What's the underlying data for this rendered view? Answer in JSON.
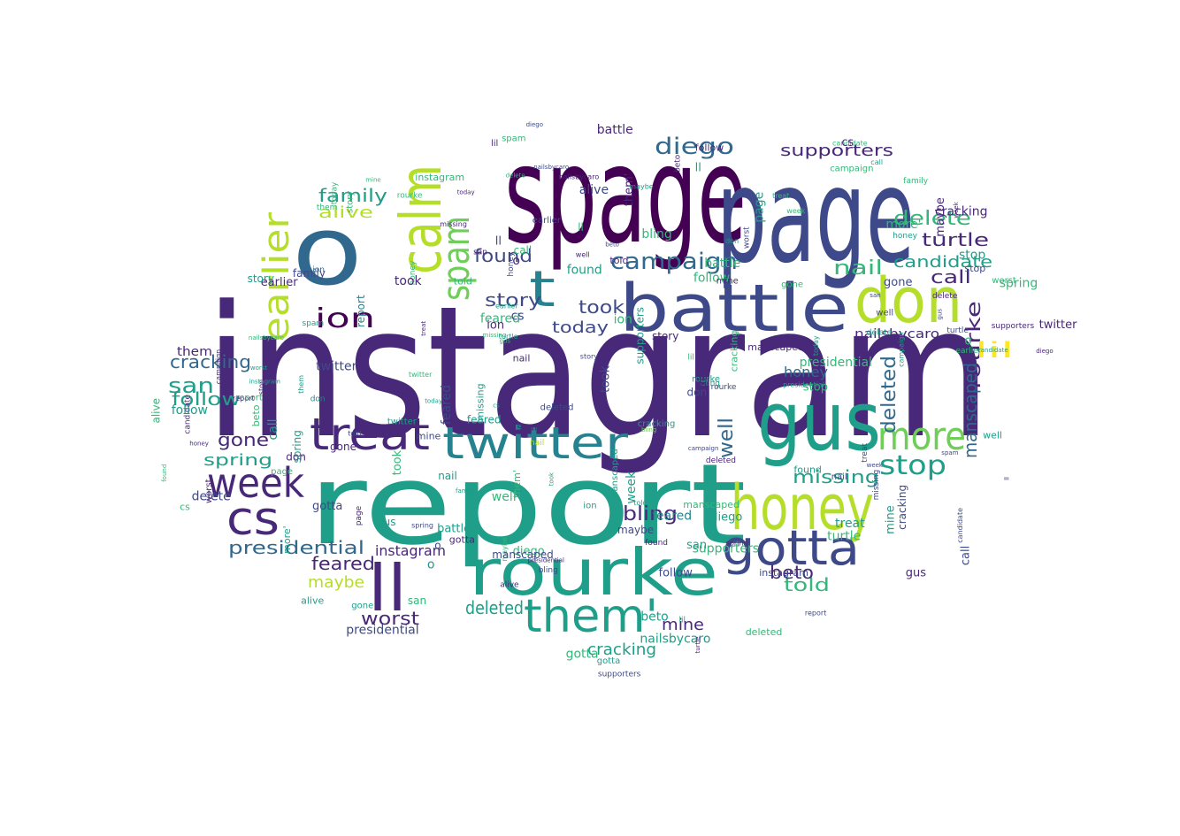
{
  "wordcloud": {
    "colors": {
      "c0": "#440154",
      "c1": "#482878",
      "c2": "#3e4989",
      "c3": "#31688e",
      "c4": "#26828e",
      "c5": "#1f9e89",
      "c6": "#35b779",
      "c7": "#6ece58",
      "c8": "#b5de2b",
      "c9": "#fde725"
    },
    "words": [
      {
        "text": "instagram",
        "color": "c1"
      },
      {
        "text": "report",
        "color": "c5"
      },
      {
        "text": "spage",
        "color": "c0"
      },
      {
        "text": "page",
        "color": "c2"
      },
      {
        "text": "o",
        "color": "c3"
      },
      {
        "text": "gus",
        "color": "c5"
      },
      {
        "text": "battle",
        "color": "c2"
      },
      {
        "text": "rourke",
        "color": "c5"
      },
      {
        "text": "honey",
        "color": "c8"
      },
      {
        "text": "don",
        "color": "c8"
      },
      {
        "text": "calm",
        "color": "c8"
      },
      {
        "text": "twitter",
        "color": "c4"
      },
      {
        "text": "treat",
        "color": "c1"
      },
      {
        "text": "more",
        "color": "c7"
      },
      {
        "text": "week",
        "color": "c1"
      },
      {
        "text": "gotta",
        "color": "c2"
      },
      {
        "text": "them'",
        "color": "c5"
      },
      {
        "text": "cs",
        "color": "c1"
      },
      {
        "text": "ll",
        "color": "c1"
      },
      {
        "text": "spam",
        "color": "c7"
      },
      {
        "text": "earlier",
        "color": "c8"
      },
      {
        "text": "campaign",
        "color": "c3"
      },
      {
        "text": "t",
        "color": "c4"
      },
      {
        "text": "ion",
        "color": "c0"
      },
      {
        "text": "diego",
        "color": "c3"
      },
      {
        "text": "stop",
        "color": "c5"
      },
      {
        "text": "presidential",
        "color": "c3"
      },
      {
        "text": "rourke",
        "color": "c1"
      },
      {
        "text": "supporters",
        "color": "c1"
      },
      {
        "text": "missing",
        "color": "c5"
      },
      {
        "text": "candidate",
        "color": "c5"
      },
      {
        "text": "delete",
        "color": "c6"
      },
      {
        "text": "nail",
        "color": "c6"
      },
      {
        "text": "lil",
        "color": "c9"
      },
      {
        "text": "turtle",
        "color": "c1"
      },
      {
        "text": "story",
        "color": "c2"
      },
      {
        "text": "took",
        "color": "c2"
      },
      {
        "text": "found",
        "color": "c2"
      },
      {
        "text": "family",
        "color": "c5"
      },
      {
        "text": "alive",
        "color": "c8"
      },
      {
        "text": "cracking",
        "color": "c3"
      },
      {
        "text": "san",
        "color": "c5"
      },
      {
        "text": "follow",
        "color": "c5"
      },
      {
        "text": "gone",
        "color": "c1"
      },
      {
        "text": "spring",
        "color": "c5"
      },
      {
        "text": "bling",
        "color": "c1"
      },
      {
        "text": "manscaped",
        "color": "c3"
      },
      {
        "text": "deleted",
        "color": "c3"
      },
      {
        "text": "cracking",
        "color": "c5"
      },
      {
        "text": "feared",
        "color": "c1"
      },
      {
        "text": "worst",
        "color": "c1"
      },
      {
        "text": "deleted",
        "color": "c5"
      },
      {
        "text": "maybe",
        "color": "c8"
      },
      {
        "text": "told",
        "color": "c6"
      },
      {
        "text": "today",
        "color": "c2"
      },
      {
        "text": "call",
        "color": "c1"
      },
      {
        "text": "beto",
        "color": "c1"
      },
      {
        "text": "mine",
        "color": "c1"
      },
      {
        "text": "honey",
        "color": "c3"
      },
      {
        "text": "well",
        "color": "c3"
      },
      {
        "text": "nailsbycaro",
        "color": "c1"
      },
      {
        "text": "them",
        "color": "c1"
      },
      {
        "text": "instagram",
        "color": "c1"
      },
      {
        "text": "delete",
        "color": "c2"
      },
      {
        "text": "diego",
        "color": "c6"
      },
      {
        "text": "stop",
        "color": "c1"
      },
      {
        "text": "alive",
        "color": "c2"
      },
      {
        "text": "ion",
        "color": "c3"
      },
      {
        "text": "report",
        "color": "c4"
      },
      {
        "text": "turtle",
        "color": "c6"
      },
      {
        "text": "family",
        "color": "c2"
      },
      {
        "text": "worst",
        "color": "c2"
      },
      {
        "text": "nail",
        "color": "c8"
      },
      {
        "text": "spam",
        "color": "c1"
      },
      {
        "text": "gus",
        "color": "c5"
      },
      {
        "text": "missing",
        "color": "c6"
      },
      {
        "text": "campaign",
        "color": "c6"
      },
      {
        "text": "earlier",
        "color": "c5"
      },
      {
        "text": "twitter",
        "color": "c2"
      },
      {
        "text": "candidate",
        "color": "c6"
      },
      {
        "text": "treat",
        "color": "c5"
      },
      {
        "text": "bling",
        "color": "c7"
      },
      {
        "text": "spring",
        "color": "c2"
      },
      {
        "text": "don",
        "color": "c4"
      },
      {
        "text": "feared",
        "color": "c4"
      },
      {
        "text": "story",
        "color": "c1"
      },
      {
        "text": "took",
        "color": "c6"
      },
      {
        "text": "today",
        "color": "c5"
      },
      {
        "text": "well",
        "color": "c1"
      },
      {
        "text": "supporters",
        "color": "c5"
      },
      {
        "text": "honey",
        "color": "c6"
      },
      {
        "text": "maybe",
        "color": "c1"
      },
      {
        "text": "presidential",
        "color": "c6"
      },
      {
        "text": "call",
        "color": "c5"
      },
      {
        "text": "manscaped",
        "color": "c6"
      },
      {
        "text": "told",
        "color": "c2"
      },
      {
        "text": "beto",
        "color": "c6"
      },
      {
        "text": "found",
        "color": "c5"
      },
      {
        "text": "mine",
        "color": "c6"
      },
      {
        "text": "san",
        "color": "c1"
      },
      {
        "text": "follow",
        "color": "c2"
      },
      {
        "text": "gone",
        "color": "c6"
      },
      {
        "text": "cracking",
        "color": "c1"
      },
      {
        "text": "nailsbycaro",
        "color": "c5"
      },
      {
        "text": "gotta",
        "color": "c6"
      },
      {
        "text": "lil",
        "color": "c1"
      },
      {
        "text": "o",
        "color": "c6"
      },
      {
        "text": "cs",
        "color": "c5"
      },
      {
        "text": "week",
        "color": "c6"
      },
      {
        "text": "ll",
        "color": "c5"
      },
      {
        "text": "more'",
        "color": "c6"
      },
      {
        "text": "rourke",
        "color": "c6"
      },
      {
        "text": "diego",
        "color": "c1"
      },
      {
        "text": "battle",
        "color": "c6"
      },
      {
        "text": "page",
        "color": "c6"
      },
      {
        "text": "them'",
        "color": "c1"
      },
      {
        "text": "alive",
        "color": "c5"
      },
      {
        "text": "ion",
        "color": "c6"
      },
      {
        "text": "stop",
        "color": "c6"
      },
      {
        "text": "turtle",
        "color": "c5"
      },
      {
        "text": "spam",
        "color": "c6"
      },
      {
        "text": "delete",
        "color": "c1"
      },
      {
        "text": "family",
        "color": "c6"
      },
      {
        "text": "report",
        "color": "c1"
      },
      {
        "text": "missing",
        "color": "c1"
      },
      {
        "text": "worst",
        "color": "c6"
      },
      {
        "text": "earlier",
        "color": "c1"
      },
      {
        "text": "today",
        "color": "c1"
      },
      {
        "text": "candidate",
        "color": "c2"
      },
      {
        "text": "campaign",
        "color": "c1"
      },
      {
        "text": "bling",
        "color": "c5"
      },
      {
        "text": "spring",
        "color": "c6"
      },
      {
        "text": "feared",
        "color": "c6"
      },
      {
        "text": "twitter",
        "color": "c6"
      },
      {
        "text": "treat",
        "color": "c6"
      },
      {
        "text": "well",
        "color": "c6"
      },
      {
        "text": "nail",
        "color": "c1"
      },
      {
        "text": "told",
        "color": "c5"
      },
      {
        "text": "story",
        "color": "c6"
      },
      {
        "text": "found",
        "color": "c6"
      },
      {
        "text": "took",
        "color": "c1"
      },
      {
        "text": "maybe",
        "color": "c6"
      },
      {
        "text": "honey",
        "color": "c1"
      },
      {
        "text": "gus",
        "color": "c1"
      },
      {
        "text": "call",
        "color": "c6"
      },
      {
        "text": "mine",
        "color": "c5"
      },
      {
        "text": "beto",
        "color": "c5"
      },
      {
        "text": "san",
        "color": "c6"
      },
      {
        "text": "follow",
        "color": "c6"
      },
      {
        "text": "supporters",
        "color": "c6"
      },
      {
        "text": "presidential",
        "color": "c1"
      },
      {
        "text": "cracking",
        "color": "c6"
      },
      {
        "text": "manscaped",
        "color": "c1"
      },
      {
        "text": "gone",
        "color": "c5"
      },
      {
        "text": "deleted",
        "color": "c6"
      },
      {
        "text": "instagram",
        "color": "c6"
      },
      {
        "text": "nailsbycaro",
        "color": "c6"
      },
      {
        "text": "lil",
        "color": "c6"
      },
      {
        "text": "gotta",
        "color": "c1"
      },
      {
        "text": "cs",
        "color": "c6"
      },
      {
        "text": "ll",
        "color": "c6"
      },
      {
        "text": "week",
        "color": "c5"
      },
      {
        "text": "don",
        "color": "c1"
      },
      {
        "text": "them",
        "color": "c6"
      },
      {
        "text": "o",
        "color": "c1"
      },
      {
        "text": "rourke",
        "color": "c5"
      },
      {
        "text": "battle",
        "color": "c1"
      },
      {
        "text": "diego",
        "color": "c5"
      },
      {
        "text": "page",
        "color": "c1"
      },
      {
        "text": "ion",
        "color": "c5"
      },
      {
        "text": "alive",
        "color": "c1"
      },
      {
        "text": "stop",
        "color": "c2"
      },
      {
        "text": "spam",
        "color": "c5"
      },
      {
        "text": "family",
        "color": "c1"
      },
      {
        "text": "delete",
        "color": "c5"
      },
      {
        "text": "turtle",
        "color": "c2"
      },
      {
        "text": "report",
        "color": "c6"
      },
      {
        "text": "missing",
        "color": "c2"
      },
      {
        "text": "worst",
        "color": "c5"
      },
      {
        "text": "earlier",
        "color": "c6"
      },
      {
        "text": "candidate",
        "color": "c1"
      },
      {
        "text": "today",
        "color": "c6"
      },
      {
        "text": "campaign",
        "color": "c5"
      },
      {
        "text": "bling",
        "color": "c6"
      },
      {
        "text": "spring",
        "color": "c1"
      },
      {
        "text": "feared",
        "color": "c5"
      },
      {
        "text": "twitter",
        "color": "c1"
      },
      {
        "text": "treat",
        "color": "c2"
      },
      {
        "text": "well",
        "color": "c5"
      },
      {
        "text": "nail",
        "color": "c5"
      },
      {
        "text": "told",
        "color": "c1"
      },
      {
        "text": "story",
        "color": "c5"
      },
      {
        "text": "found",
        "color": "c1"
      },
      {
        "text": "took",
        "color": "c5"
      },
      {
        "text": "maybe",
        "color": "c5"
      },
      {
        "text": "honey",
        "color": "c5"
      },
      {
        "text": "gus",
        "color": "c6"
      },
      {
        "text": "call",
        "color": "c2"
      },
      {
        "text": "mine",
        "color": "c2"
      },
      {
        "text": "beto",
        "color": "c2"
      },
      {
        "text": "san",
        "color": "c2"
      },
      {
        "text": "follow",
        "color": "c1"
      },
      {
        "text": "supporters",
        "color": "c2"
      },
      {
        "text": "presidential",
        "color": "c5"
      },
      {
        "text": "cracking",
        "color": "c2"
      },
      {
        "text": "manscaped",
        "color": "c5"
      },
      {
        "text": "gone",
        "color": "c2"
      },
      {
        "text": "deleted",
        "color": "c1"
      },
      {
        "text": "instagram",
        "color": "c5"
      },
      {
        "text": "nailsbycaro",
        "color": "c2"
      },
      {
        "text": "lil",
        "color": "c5"
      },
      {
        "text": "gotta",
        "color": "c5"
      },
      {
        "text": "cs",
        "color": "c2"
      },
      {
        "text": "ll",
        "color": "c2"
      },
      {
        "text": "week",
        "color": "c2"
      },
      {
        "text": "don",
        "color": "c5"
      },
      {
        "text": "them'",
        "color": "c6"
      },
      {
        "text": "more'",
        "color": "c5"
      },
      {
        "text": "o",
        "color": "c5"
      },
      {
        "text": "rourke",
        "color": "c2"
      },
      {
        "text": "battle",
        "color": "c5"
      },
      {
        "text": "diego",
        "color": "c2"
      },
      {
        "text": "page",
        "color": "c5"
      },
      {
        "text": "ion",
        "color": "c1"
      },
      {
        "text": "alive",
        "color": "c6"
      },
      {
        "text": "stop",
        "color": "c5"
      },
      {
        "text": "spam",
        "color": "c2"
      },
      {
        "text": "family",
        "color": "c5"
      },
      {
        "text": "delete",
        "color": "c6"
      },
      {
        "text": "turtle",
        "color": "c1"
      },
      {
        "text": "report",
        "color": "c2"
      },
      {
        "text": "missing",
        "color": "c5"
      },
      {
        "text": "worst",
        "color": "c1"
      },
      {
        "text": "earlier",
        "color": "c2"
      },
      {
        "text": "candidate",
        "color": "c5"
      },
      {
        "text": "today",
        "color": "c5"
      },
      {
        "text": "campaign",
        "color": "c2"
      },
      {
        "text": "bling",
        "color": "c2"
      },
      {
        "text": "spring",
        "color": "c5"
      },
      {
        "text": "feared",
        "color": "c2"
      },
      {
        "text": "twitter",
        "color": "c5"
      },
      {
        "text": "treat",
        "color": "c1"
      },
      {
        "text": "well",
        "color": "c2"
      },
      {
        "text": "nail",
        "color": "c2"
      },
      {
        "text": "told",
        "color": "c6"
      },
      {
        "text": "story",
        "color": "c2"
      },
      {
        "text": "found",
        "color": "c5"
      },
      {
        "text": "took",
        "color": "c2"
      },
      {
        "text": "maybe",
        "color": "c2"
      },
      {
        "text": "honey",
        "color": "c2"
      },
      {
        "text": "gus",
        "color": "c2"
      },
      {
        "text": "call",
        "color": "c5"
      },
      {
        "text": "mine",
        "color": "c1"
      },
      {
        "text": "beto",
        "color": "c1"
      },
      {
        "text": "san",
        "color": "c5"
      },
      {
        "text": "follow",
        "color": "c5"
      },
      {
        "text": "supporters",
        "color": "c1"
      },
      {
        "text": "presidential",
        "color": "c2"
      },
      {
        "text": "cracking",
        "color": "c5"
      },
      {
        "text": "manscaped",
        "color": "c2"
      },
      {
        "text": "gone",
        "color": "c1"
      },
      {
        "text": "deleted",
        "color": "c2"
      },
      {
        "text": "instagram",
        "color": "c2"
      },
      {
        "text": "nailsbycaro",
        "color": "c1"
      },
      {
        "text": "lil",
        "color": "c2"
      },
      {
        "text": "gotta",
        "color": "c2"
      },
      {
        "text": "cs",
        "color": "c1"
      },
      {
        "text": "ll",
        "color": "c1"
      },
      {
        "text": "week",
        "color": "c1"
      },
      {
        "text": "don",
        "color": "c2"
      },
      {
        "text": "them",
        "color": "c5"
      },
      {
        "text": "o",
        "color": "c2"
      }
    ]
  }
}
